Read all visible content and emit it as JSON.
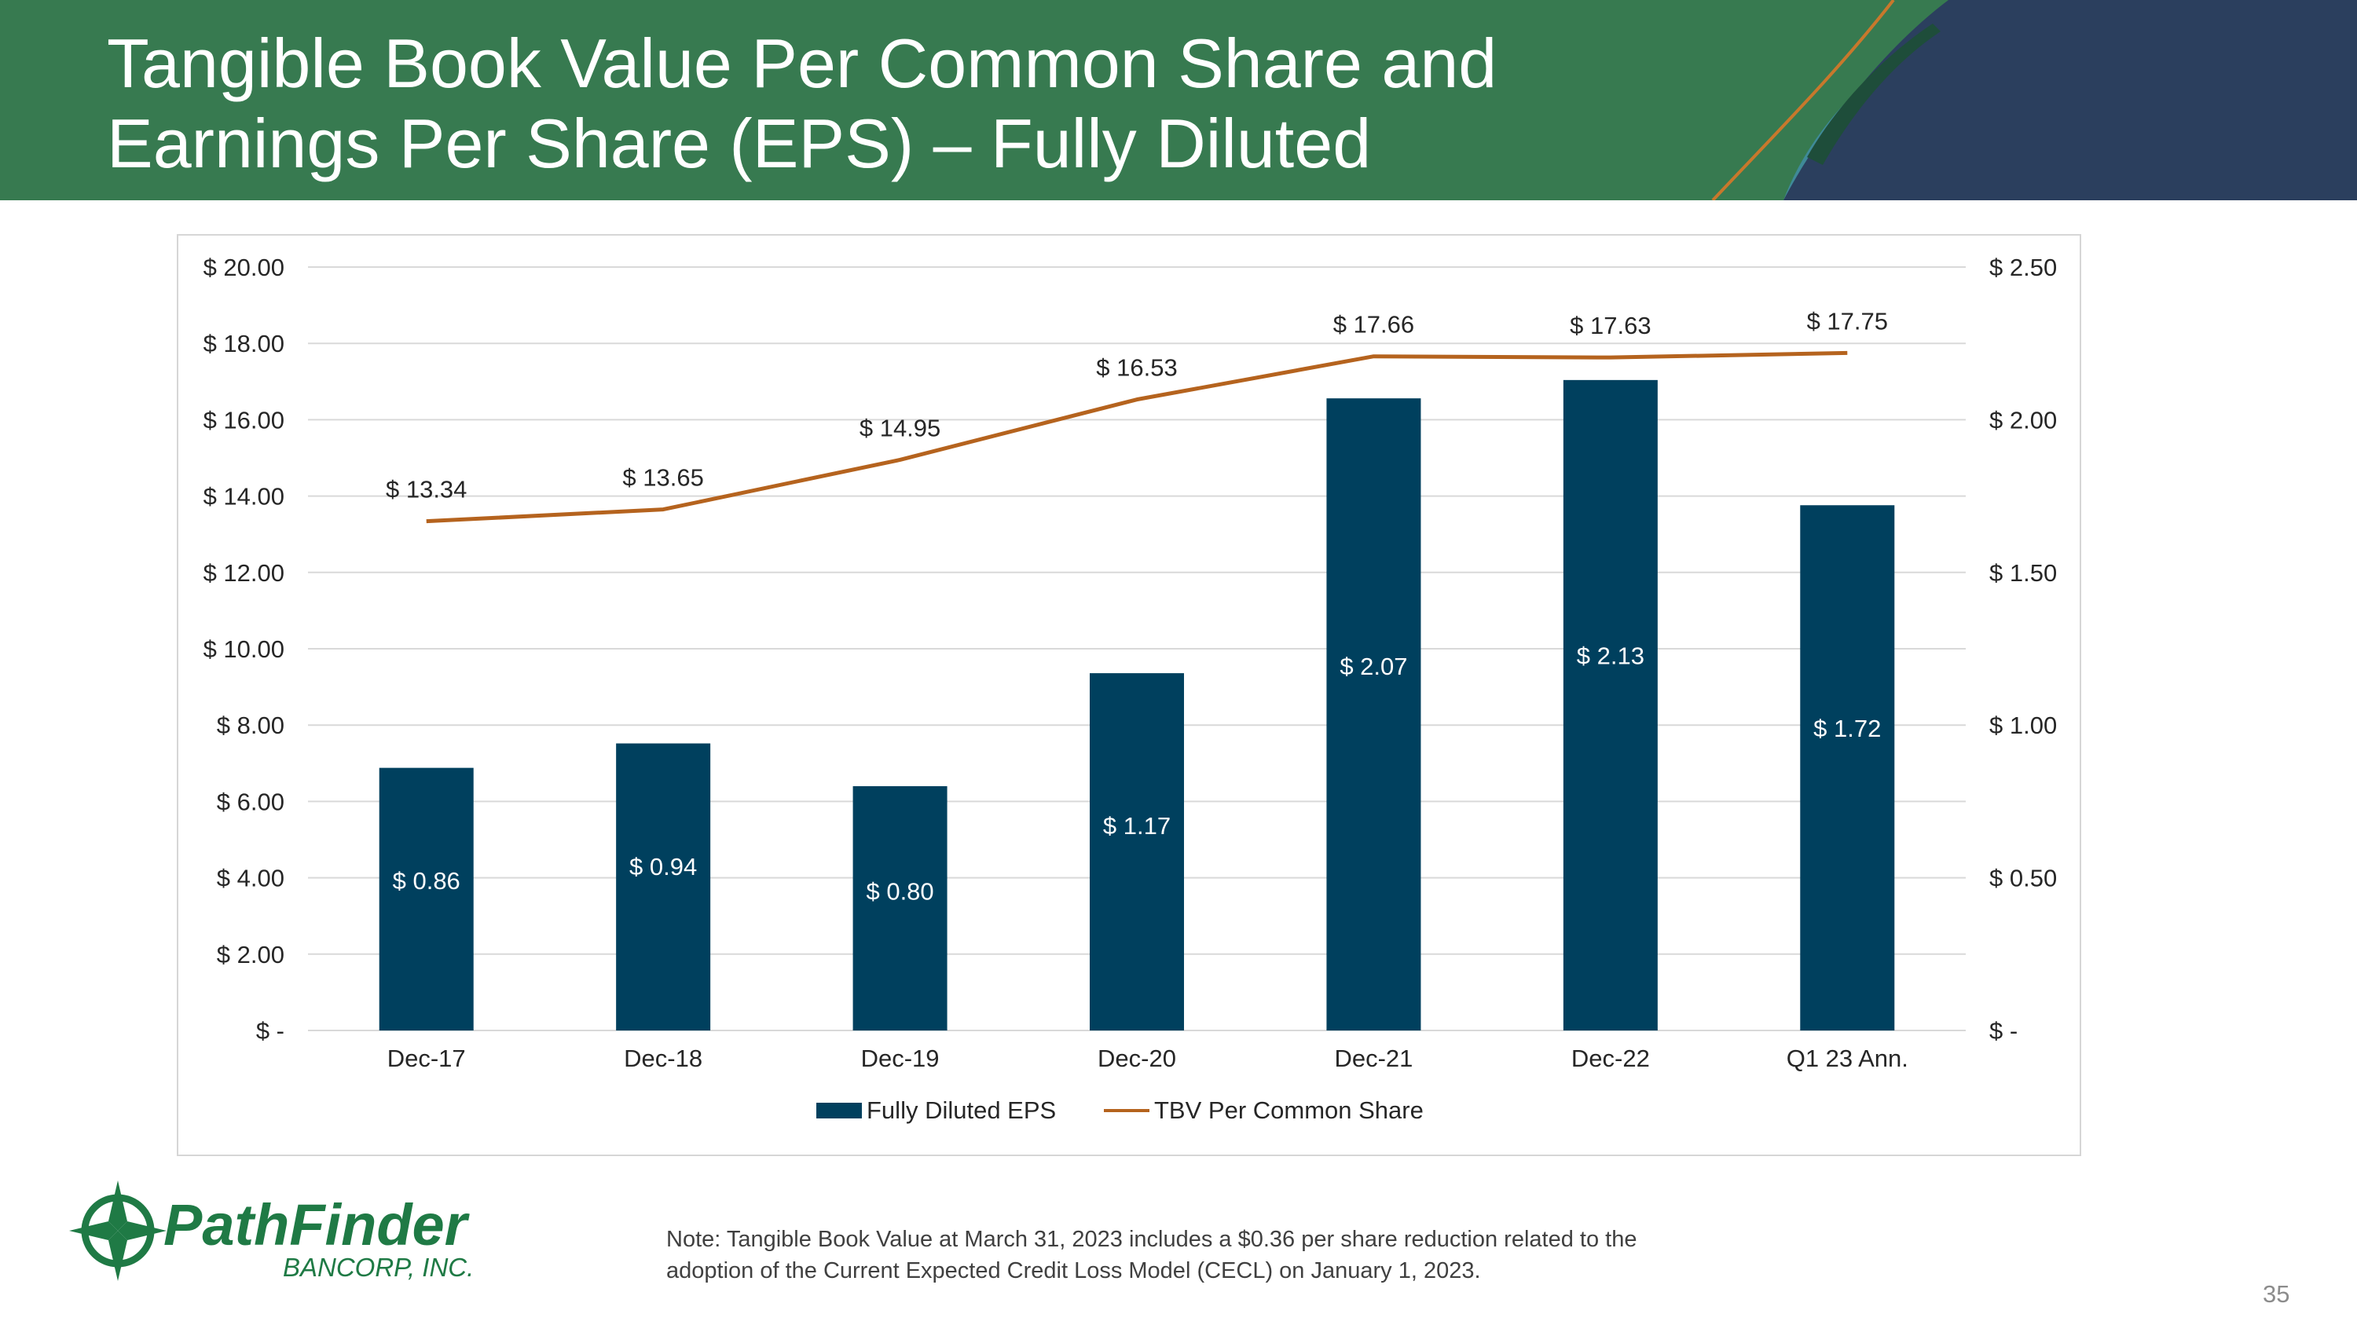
{
  "slide": {
    "title_line1": "Tangible Book Value Per Common Share and",
    "title_line2": "Earnings Per Share (EPS) – Fully Diluted",
    "note_line1": "Note: Tangible Book Value at March 31, 2023 includes a $0.36 per share reduction related to the",
    "note_line2": "adoption of the Current Expected Credit Loss Model (CECL) on January 1, 2023.",
    "page_number": "35",
    "logo_name": "PathFinder",
    "logo_sub": "BANCORP, INC."
  },
  "colors": {
    "header_green": "#377a50",
    "header_navy": "#2b3f5e",
    "bar": "#00405e",
    "line": "#b5631e",
    "logo_green": "#1f7a45"
  },
  "chart_data": {
    "type": "bar",
    "categories": [
      "Dec-17",
      "Dec-18",
      "Dec-19",
      "Dec-20",
      "Dec-21",
      "Dec-22",
      "Q1 23 Ann."
    ],
    "series": [
      {
        "name": "Fully Diluted EPS",
        "kind": "bar",
        "axis": "right",
        "values": [
          0.86,
          0.94,
          0.8,
          1.17,
          2.07,
          2.13,
          1.72
        ],
        "labels": [
          "$ 0.86",
          "$ 0.94",
          "$ 0.80",
          "$ 1.17",
          "$ 2.07",
          "$ 2.13",
          "$ 1.72"
        ]
      },
      {
        "name": "TBV Per Common Share",
        "kind": "line",
        "axis": "left",
        "values": [
          13.34,
          13.65,
          14.95,
          16.53,
          17.66,
          17.63,
          17.75
        ],
        "labels": [
          "$ 13.34",
          "$ 13.65",
          "$ 14.95",
          "$ 16.53",
          "$ 17.66",
          "$ 17.63",
          "$ 17.75"
        ]
      }
    ],
    "y_left": {
      "min": 0,
      "max": 20,
      "ticks": [
        0,
        2,
        4,
        6,
        8,
        10,
        12,
        14,
        16,
        18,
        20
      ],
      "tick_labels": [
        "$ -",
        "$ 2.00",
        "$ 4.00",
        "$ 6.00",
        "$ 8.00",
        "$ 10.00",
        "$ 12.00",
        "$ 14.00",
        "$ 16.00",
        "$ 18.00",
        "$ 20.00"
      ]
    },
    "y_right": {
      "min": 0,
      "max": 2.5,
      "ticks": [
        0,
        0.5,
        1.0,
        1.5,
        2.0,
        2.5
      ],
      "tick_labels": [
        "$ -",
        "$ 0.50",
        "$ 1.00",
        "$ 1.50",
        "$ 2.00",
        "$ 2.50"
      ]
    },
    "gridlines": true,
    "legend_position": "bottom-center"
  }
}
